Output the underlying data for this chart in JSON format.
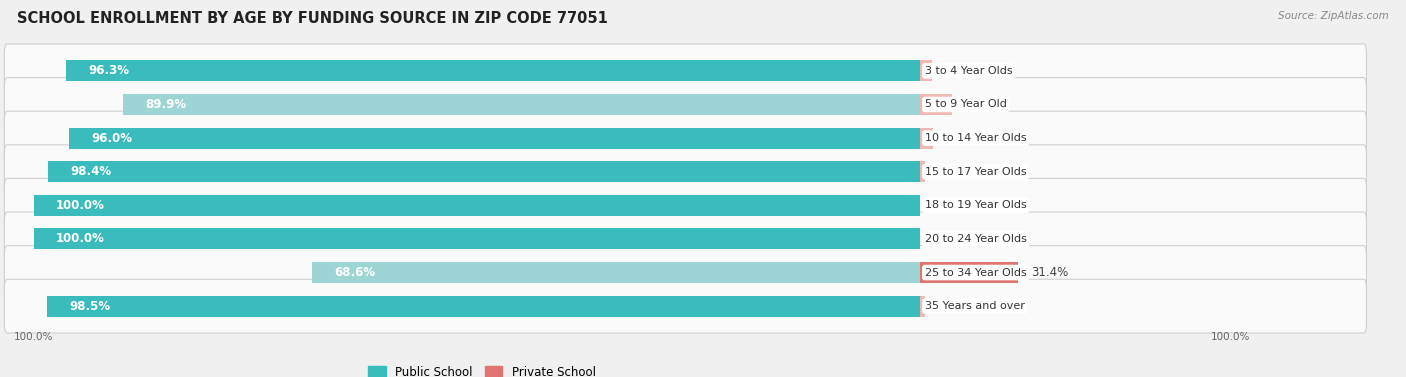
{
  "title": "SCHOOL ENROLLMENT BY AGE BY FUNDING SOURCE IN ZIP CODE 77051",
  "source": "Source: ZipAtlas.com",
  "categories": [
    "3 to 4 Year Olds",
    "5 to 9 Year Old",
    "10 to 14 Year Olds",
    "15 to 17 Year Olds",
    "18 to 19 Year Olds",
    "20 to 24 Year Olds",
    "25 to 34 Year Olds",
    "35 Years and over"
  ],
  "public_values": [
    96.3,
    89.9,
    96.0,
    98.4,
    100.0,
    100.0,
    68.6,
    98.5
  ],
  "private_values": [
    3.8,
    10.1,
    4.0,
    1.6,
    0.0,
    0.0,
    31.4,
    1.6
  ],
  "public_color_strong": "#3bbcbc",
  "public_color_light": "#9dd5d5",
  "private_color_strong": "#e07470",
  "private_color_light": "#f0b8b3",
  "bg_color": "#f0f0f0",
  "row_bg_color": "#fafafa",
  "bar_height": 0.62,
  "title_fontsize": 10.5,
  "pub_label_fontsize": 8.5,
  "cat_label_fontsize": 8.0,
  "priv_label_fontsize": 8.5,
  "axis_fontsize": 7.5,
  "legend_fontsize": 8.5,
  "source_fontsize": 7.5,
  "xlim_left": -105,
  "xlim_right": 50,
  "pub_scale": 1.0,
  "priv_scale": 0.35
}
